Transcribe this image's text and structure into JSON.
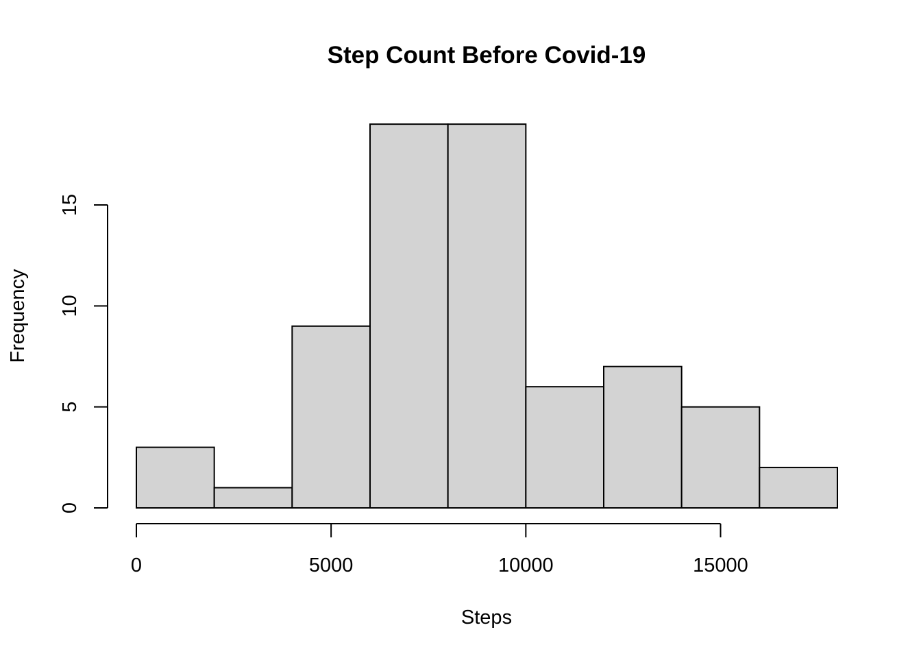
{
  "chart_data": {
    "type": "bar",
    "title": "Step Count Before Covid-19",
    "xlabel": "Steps",
    "ylabel": "Frequency",
    "bins": [
      {
        "from": 0,
        "to": 2000,
        "count": 3
      },
      {
        "from": 2000,
        "to": 4000,
        "count": 1
      },
      {
        "from": 4000,
        "to": 6000,
        "count": 9
      },
      {
        "from": 6000,
        "to": 8000,
        "count": 19
      },
      {
        "from": 8000,
        "to": 10000,
        "count": 19
      },
      {
        "from": 10000,
        "to": 12000,
        "count": 6
      },
      {
        "from": 12000,
        "to": 14000,
        "count": 7
      },
      {
        "from": 14000,
        "to": 16000,
        "count": 5
      },
      {
        "from": 16000,
        "to": 18000,
        "count": 2
      }
    ],
    "xticks": [
      0,
      5000,
      10000,
      15000
    ],
    "xtick_labels": [
      "0",
      "5000",
      "10000",
      "15000"
    ],
    "yticks": [
      0,
      5,
      10,
      15
    ],
    "ytick_labels": [
      "0",
      "5",
      "10",
      "15"
    ],
    "xlim": [
      0,
      18000
    ],
    "ylim": [
      0,
      19
    ],
    "colors": {
      "bar_fill": "#d3d3d3",
      "bar_stroke": "#000000"
    },
    "grid": false
  }
}
